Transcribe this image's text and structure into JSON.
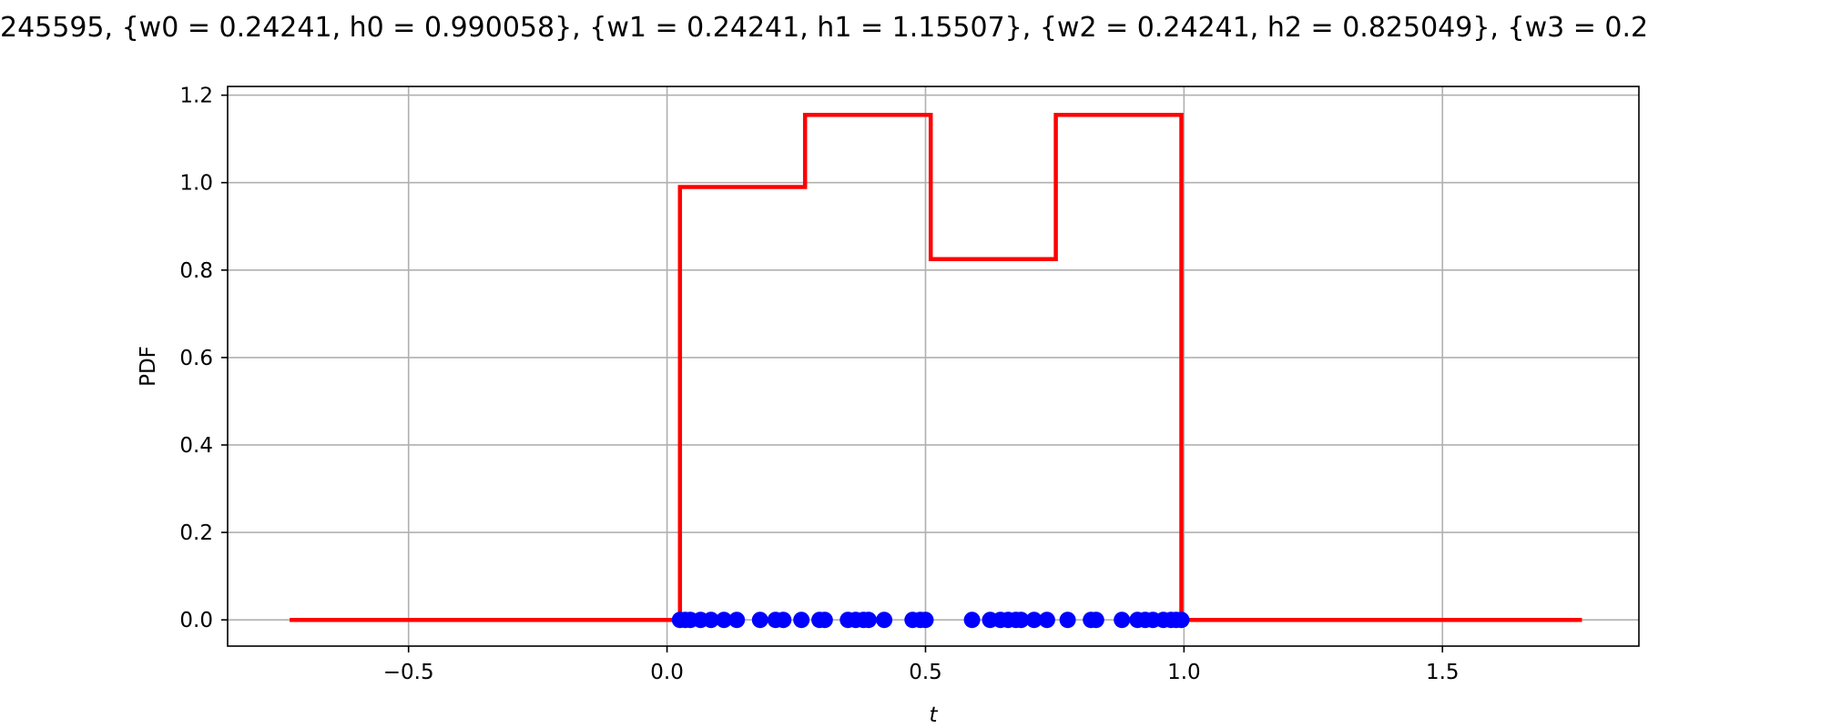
{
  "chart_data": {
    "type": "line",
    "title": "245595, {w0 = 0.24241, h0 = 0.990058}, {w1 = 0.24241, h1 = 1.15507}, {w2 = 0.24241, h2 = 0.825049}, {w3 = 0.2",
    "xlabel": "t",
    "ylabel": "PDF",
    "xlim": [
      -0.85,
      1.88
    ],
    "ylim": [
      -0.06,
      1.22
    ],
    "xticks": [
      -0.5,
      0.0,
      0.5,
      1.0,
      1.5
    ],
    "xtick_labels": [
      "−0.5",
      "0.0",
      "0.5",
      "1.0",
      "1.5"
    ],
    "yticks": [
      0.0,
      0.2,
      0.4,
      0.6,
      0.8,
      1.0,
      1.2
    ],
    "ytick_labels": [
      "0.0",
      "0.2",
      "0.4",
      "0.6",
      "0.8",
      "1.0",
      "1.2"
    ],
    "grid": true,
    "series": [
      {
        "kind": "step-line",
        "color": "#ff0000",
        "x": [
          -0.73,
          0.025,
          0.025,
          0.267,
          0.267,
          0.51,
          0.51,
          0.752,
          0.752,
          0.995,
          0.995,
          1.77
        ],
        "y": [
          0.0,
          0.0,
          0.990058,
          0.990058,
          1.15507,
          1.15507,
          0.825049,
          0.825049,
          1.15507,
          1.15507,
          0.0,
          0.0
        ]
      },
      {
        "kind": "scatter",
        "color": "#0000ff",
        "x": [
          0.025,
          0.035,
          0.045,
          0.065,
          0.085,
          0.11,
          0.135,
          0.18,
          0.21,
          0.225,
          0.26,
          0.295,
          0.305,
          0.35,
          0.365,
          0.38,
          0.39,
          0.42,
          0.475,
          0.49,
          0.5,
          0.59,
          0.625,
          0.645,
          0.66,
          0.675,
          0.685,
          0.71,
          0.735,
          0.775,
          0.82,
          0.83,
          0.88,
          0.91,
          0.925,
          0.94,
          0.96,
          0.975,
          0.985,
          0.995
        ],
        "y": [
          0,
          0,
          0,
          0,
          0,
          0,
          0,
          0,
          0,
          0,
          0,
          0,
          0,
          0,
          0,
          0,
          0,
          0,
          0,
          0,
          0,
          0,
          0,
          0,
          0,
          0,
          0,
          0,
          0,
          0,
          0,
          0,
          0,
          0,
          0,
          0,
          0,
          0,
          0,
          0
        ]
      }
    ]
  }
}
